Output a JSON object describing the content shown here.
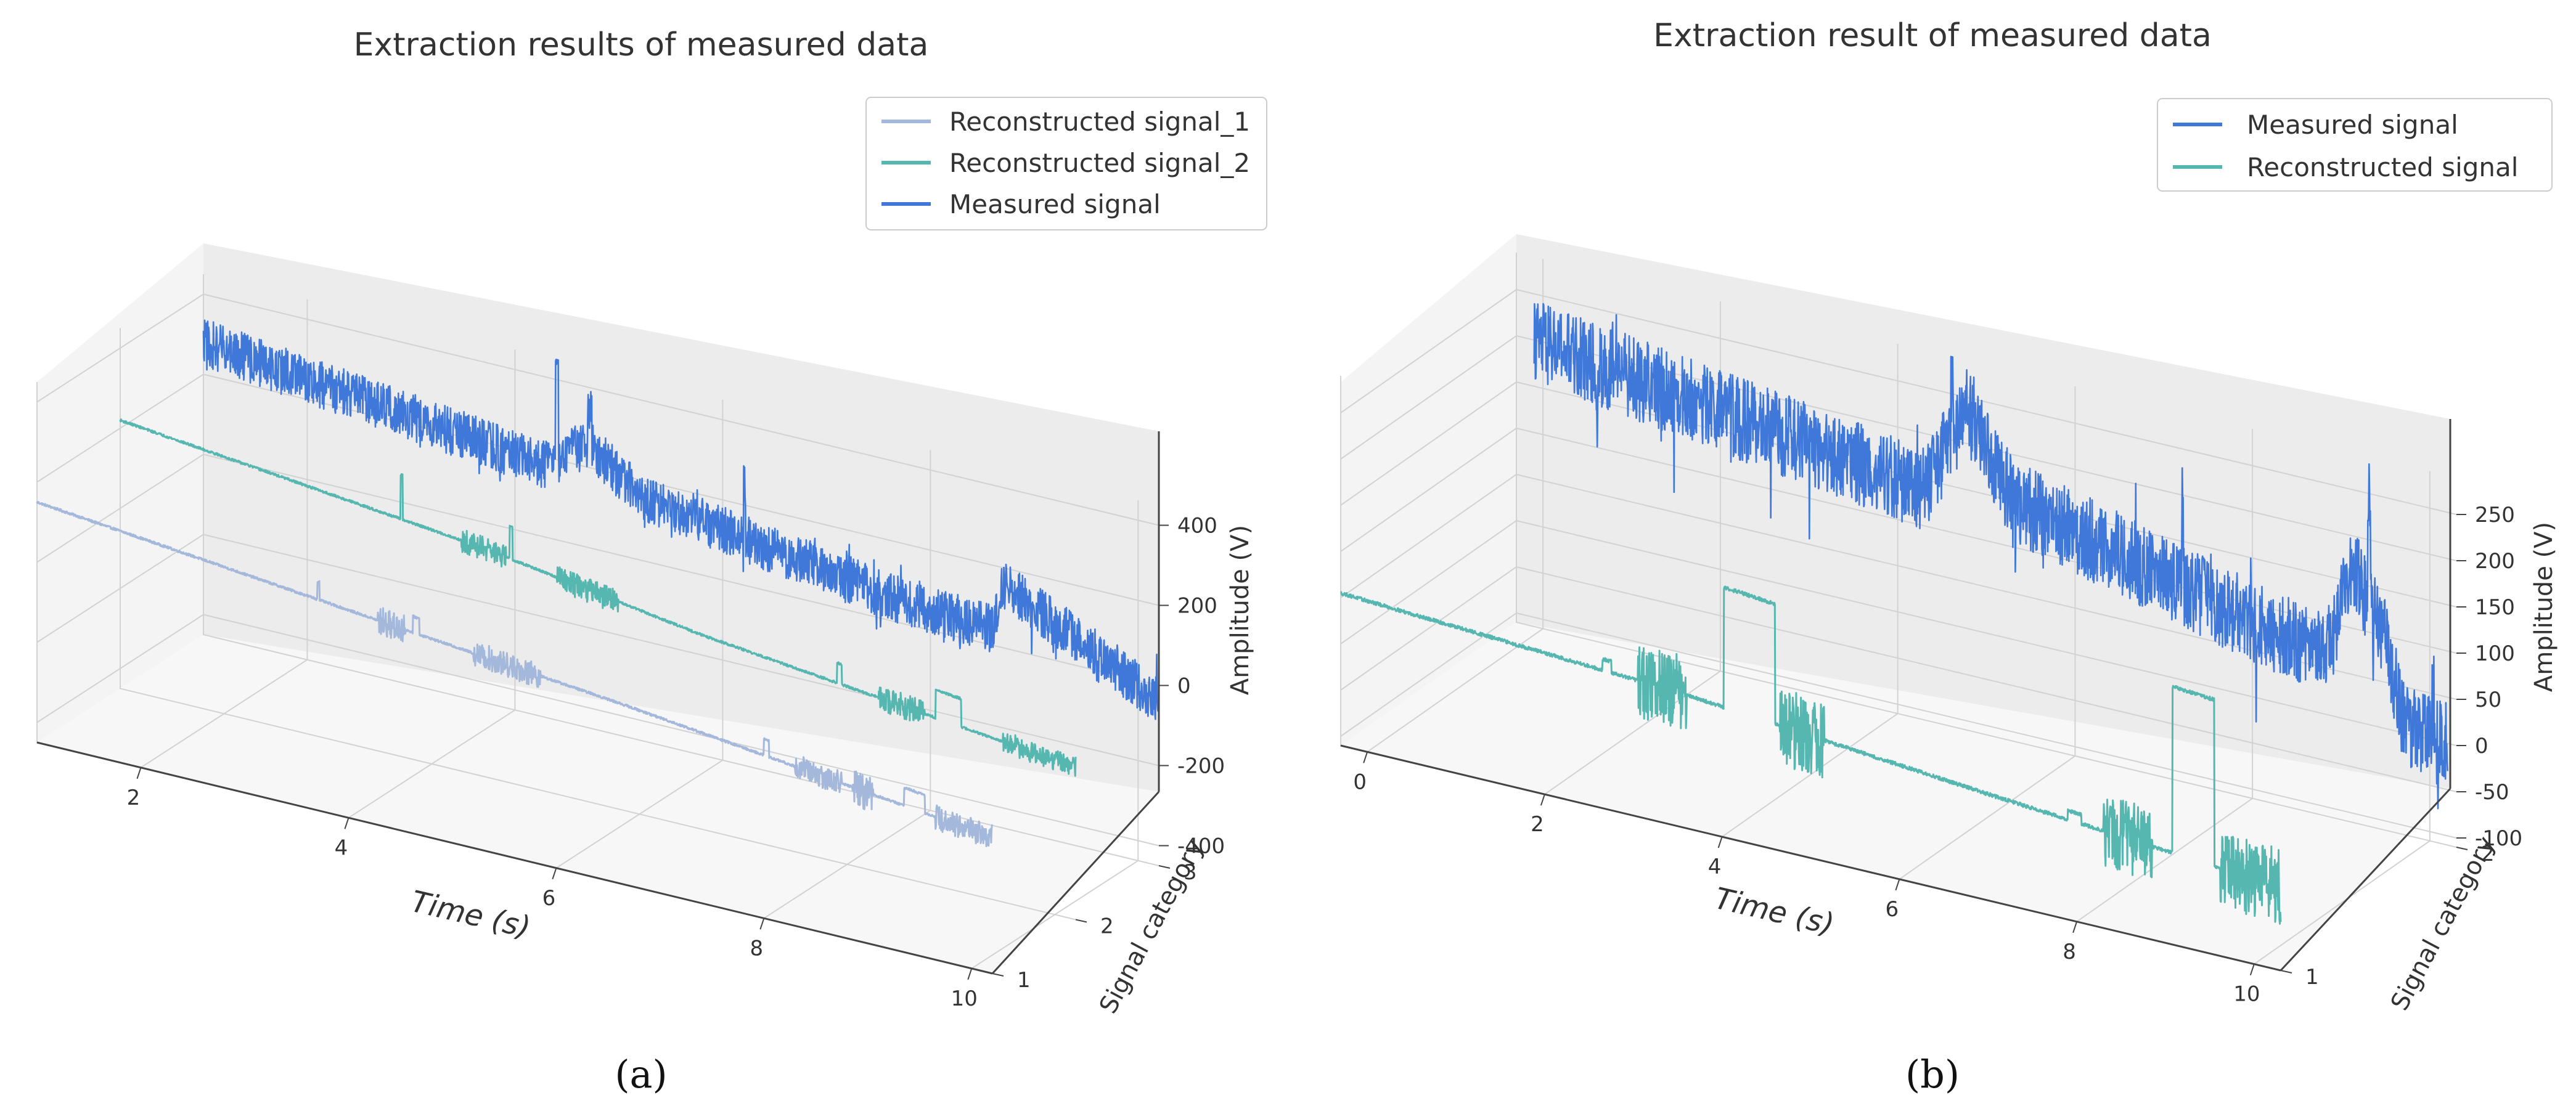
{
  "figure": {
    "panel_a_caption": "(a)",
    "panel_b_caption": "(b)"
  },
  "chart_data": [
    {
      "type": "line3d",
      "title": "Extraction results of measured data",
      "xlabel": "Time (s)",
      "ylabel": "Signal category",
      "zlabel": "Amplitude (V)",
      "xlim": [
        1,
        10.2
      ],
      "ylim": [
        1,
        3
      ],
      "zlim": [
        -450,
        450
      ],
      "x_ticks": [
        2,
        4,
        6,
        8,
        10
      ],
      "y_ticks": [
        1,
        2,
        3
      ],
      "z_ticks": [
        -400,
        -200,
        0,
        200,
        400
      ],
      "legend_position": "top-right",
      "series": [
        {
          "name": "Reconstructed signal_1",
          "color": "#a4b8dc",
          "category": 1,
          "baseline": [
            [
              1.0,
              150
            ],
            [
              4.5,
              55
            ],
            [
              6.6,
              0
            ],
            [
              10.2,
              -110
            ]
          ],
          "noise_amp": 3,
          "events": [
            {
              "x0": 3.7,
              "x1": 3.72,
              "amp": 45,
              "shape": "spike"
            },
            {
              "x0": 4.28,
              "x1": 4.55,
              "amp": 35,
              "shape": "burst"
            },
            {
              "x0": 4.62,
              "x1": 4.68,
              "amp": 40,
              "shape": "step"
            },
            {
              "x0": 5.2,
              "x1": 5.85,
              "amp": 30,
              "shape": "burst"
            },
            {
              "x0": 8.0,
              "x1": 8.05,
              "amp": 40,
              "shape": "spike"
            },
            {
              "x0": 8.3,
              "x1": 8.75,
              "amp": 30,
              "shape": "burst"
            },
            {
              "x0": 8.85,
              "x1": 9.05,
              "amp": 45,
              "shape": "burst"
            },
            {
              "x0": 9.35,
              "x1": 9.55,
              "amp": 45,
              "shape": "step"
            },
            {
              "x0": 9.65,
              "x1": 10.2,
              "amp": 30,
              "shape": "burst"
            }
          ]
        },
        {
          "name": "Reconstructed signal_2",
          "color": "#56b6b0",
          "category": 2,
          "baseline": [
            [
              1.0,
              220
            ],
            [
              4.5,
              120
            ],
            [
              6.6,
              35
            ],
            [
              10.2,
              -70
            ]
          ],
          "noise_amp": 3,
          "events": [
            {
              "x0": 3.7,
              "x1": 3.72,
              "amp": 110,
              "shape": "spike"
            },
            {
              "x0": 4.28,
              "x1": 4.72,
              "amp": 30,
              "shape": "burst"
            },
            {
              "x0": 4.75,
              "x1": 4.78,
              "amp": 80,
              "shape": "spike"
            },
            {
              "x0": 5.2,
              "x1": 5.8,
              "amp": 30,
              "shape": "burst"
            },
            {
              "x0": 7.9,
              "x1": 7.95,
              "amp": 50,
              "shape": "spike"
            },
            {
              "x0": 8.3,
              "x1": 8.75,
              "amp": 30,
              "shape": "burst"
            },
            {
              "x0": 8.85,
              "x1": 9.1,
              "amp": 70,
              "shape": "step"
            },
            {
              "x0": 9.5,
              "x1": 10.2,
              "amp": 25,
              "shape": "burst"
            }
          ]
        },
        {
          "name": "Measured signal",
          "color": "#3f78d8",
          "category": 3,
          "baseline": [
            [
              1.0,
              280
            ],
            [
              4.3,
              180
            ],
            [
              4.7,
              260
            ],
            [
              5.2,
              160
            ],
            [
              7.6,
              60
            ],
            [
              8.6,
              40
            ],
            [
              8.7,
              160
            ],
            [
              9.6,
              40
            ],
            [
              10.2,
              -40
            ]
          ],
          "noise_amp": 60,
          "events": [
            {
              "x0": 4.39,
              "x1": 4.42,
              "amp": 260,
              "shape": "spike"
            },
            {
              "x0": 4.7,
              "x1": 4.74,
              "amp": 100,
              "shape": "spike"
            },
            {
              "x0": 6.2,
              "x1": 6.22,
              "amp": 130,
              "shape": "spike"
            },
            {
              "x0": 9.6,
              "x1": 9.62,
              "amp": -60,
              "shape": "spike"
            }
          ]
        }
      ]
    },
    {
      "type": "line3d",
      "title": "Extraction result of measured data",
      "xlabel": "Time (s)",
      "ylabel": "Signal category",
      "zlabel": "Amplitude (V)",
      "xlim": [
        -0.3,
        10.3
      ],
      "ylim": [
        1,
        2
      ],
      "zlim": [
        -110,
        290
      ],
      "x_ticks": [
        0,
        2,
        4,
        6,
        8,
        10
      ],
      "y_ticks": [
        1,
        2
      ],
      "z_ticks": [
        -100,
        -50,
        0,
        50,
        100,
        150,
        200,
        250
      ],
      "legend_position": "top-right",
      "series": [
        {
          "name": "Measured signal",
          "color": "#3f78d8",
          "category": 2,
          "baseline": [
            [
              -0.1,
              200
            ],
            [
              4.3,
              140
            ],
            [
              4.8,
              240
            ],
            [
              5.3,
              150
            ],
            [
              8.5,
              70
            ],
            [
              8.9,
              80
            ],
            [
              9.1,
              170
            ],
            [
              9.5,
              100
            ],
            [
              9.7,
              10
            ],
            [
              10.2,
              0
            ]
          ],
          "noise_amp": 45,
          "events": [
            {
              "x0": 0.6,
              "x1": 0.62,
              "amp": -80,
              "shape": "spike"
            },
            {
              "x0": 4.6,
              "x1": 4.63,
              "amp": 60,
              "shape": "spike"
            },
            {
              "x0": 7.2,
              "x1": 7.22,
              "amp": 90,
              "shape": "spike"
            },
            {
              "x0": 9.3,
              "x1": 9.33,
              "amp": 110,
              "shape": "spike"
            }
          ]
        },
        {
          "name": "Reconstructed signal",
          "color": "#56b6b0",
          "category": 1,
          "baseline": [
            [
              -0.3,
              55
            ],
            [
              3.5,
              35
            ],
            [
              7.0,
              5
            ],
            [
              10.3,
              -20
            ]
          ],
          "noise_amp": 2,
          "events": [
            {
              "x0": 2.65,
              "x1": 2.75,
              "amp": 12,
              "shape": "step"
            },
            {
              "x0": 3.05,
              "x1": 3.6,
              "amp": 40,
              "shape": "burst"
            },
            {
              "x0": 4.02,
              "x1": 4.6,
              "amp": 130,
              "shape": "step"
            },
            {
              "x0": 4.65,
              "x1": 5.15,
              "amp": 40,
              "shape": "burst"
            },
            {
              "x0": 7.9,
              "x1": 8.05,
              "amp": 10,
              "shape": "step"
            },
            {
              "x0": 8.3,
              "x1": 8.85,
              "amp": 40,
              "shape": "burst"
            },
            {
              "x0": 9.08,
              "x1": 9.55,
              "amp": 180,
              "shape": "step"
            },
            {
              "x0": 9.62,
              "x1": 10.3,
              "amp": 40,
              "shape": "burst"
            }
          ]
        }
      ]
    }
  ]
}
